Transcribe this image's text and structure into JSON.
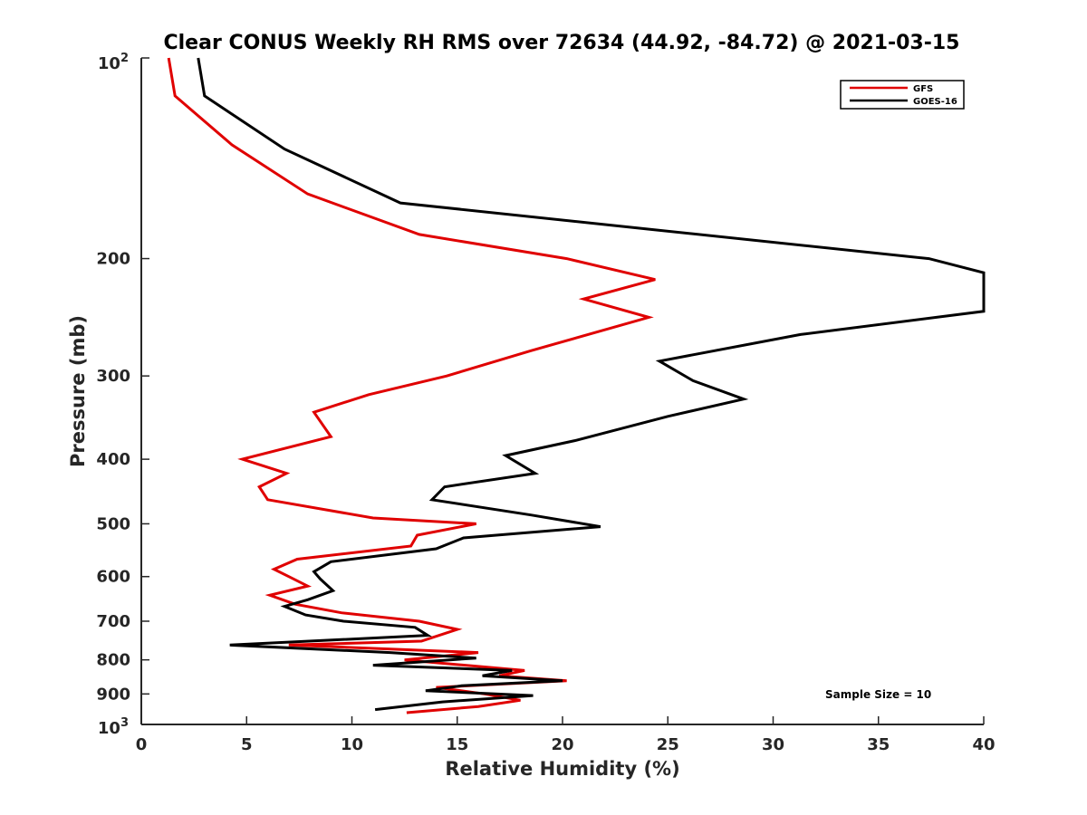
{
  "chart_data": {
    "type": "line",
    "title": "Clear CONUS Weekly RH RMS over 72634 (44.92, -84.72) @ 2021-03-15",
    "xlabel": "Relative Humidity (%)",
    "ylabel": "Pressure (mb)",
    "xlim": [
      0,
      40
    ],
    "ylim": [
      100,
      1000
    ],
    "yscale": "log",
    "yreverse": true,
    "xticks": [
      0,
      5,
      10,
      15,
      20,
      25,
      30,
      35,
      40
    ],
    "xtick_labels": [
      "0",
      "5",
      "10",
      "15",
      "20",
      "25",
      "30",
      "35",
      "40"
    ],
    "yticks": [
      200,
      300,
      400,
      500,
      600,
      700,
      800,
      900
    ],
    "ytick_labels": [
      "200",
      "300",
      "400",
      "500",
      "600",
      "700",
      "800",
      "900"
    ],
    "ytick_major": [
      {
        "value": 100,
        "base": "10",
        "exp": "2"
      },
      {
        "value": 1000,
        "base": "10",
        "exp": "3"
      }
    ],
    "legend": {
      "location": "top-right",
      "entries": [
        "GFS",
        "GOES-16"
      ]
    },
    "annotation": "Sample Size = 10",
    "series": [
      {
        "name": "GFS",
        "color": "#e00000",
        "x": [
          1.3,
          1.6,
          4.3,
          7.9,
          13.2,
          20.2,
          24.4,
          21.0,
          24.1,
          18.5,
          14.5,
          10.8,
          8.2,
          9.0,
          4.8,
          6.9,
          5.6,
          6.0,
          11.0,
          15.9,
          13.1,
          12.8,
          7.4,
          6.3,
          7.0,
          7.9,
          6.1,
          7.3,
          9.5,
          13.2,
          15.0,
          13.3,
          7.0,
          16.0,
          12.5,
          18.2,
          17.0,
          20.2,
          14.0,
          16.3,
          18.0,
          16.0,
          12.6
        ],
        "y": [
          100,
          114,
          135,
          160,
          184,
          200,
          215,
          230,
          245,
          275,
          300,
          320,
          340,
          370,
          400,
          420,
          440,
          460,
          490,
          500,
          520,
          540,
          565,
          585,
          600,
          620,
          640,
          660,
          680,
          700,
          720,
          750,
          760,
          780,
          800,
          830,
          845,
          860,
          880,
          900,
          920,
          940,
          960
        ]
      },
      {
        "name": "GOES-16",
        "color": "#000000",
        "x": [
          2.7,
          3.0,
          6.8,
          12.3,
          23.6,
          37.4,
          40.0,
          40.0,
          31.3,
          24.6,
          26.2,
          28.6,
          25.0,
          20.6,
          17.3,
          18.7,
          14.4,
          13.8,
          18.5,
          21.8,
          15.3,
          14.0,
          9.0,
          8.2,
          8.5,
          9.1,
          7.9,
          6.8,
          7.8,
          9.6,
          13.0,
          13.6,
          4.2,
          11.8,
          15.9,
          11.0,
          17.6,
          16.2,
          20.0,
          15.2,
          13.5,
          18.6,
          14.3,
          11.1
        ],
        "y": [
          100,
          114,
          137,
          165,
          180,
          200,
          210,
          240,
          260,
          285,
          305,
          325,
          345,
          375,
          395,
          420,
          440,
          460,
          485,
          505,
          525,
          545,
          570,
          590,
          605,
          630,
          650,
          665,
          685,
          700,
          715,
          735,
          760,
          780,
          795,
          815,
          830,
          845,
          860,
          875,
          890,
          905,
          925,
          950
        ]
      }
    ]
  }
}
